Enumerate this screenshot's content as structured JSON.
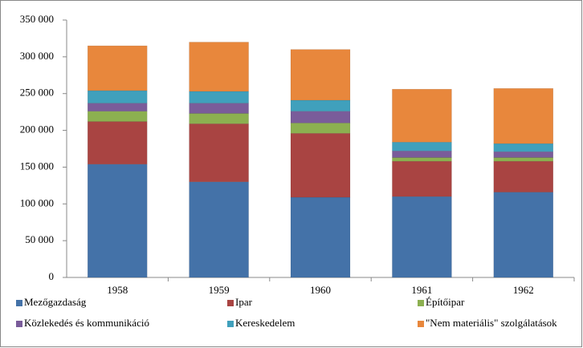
{
  "chart_data": {
    "type": "stacked-bar",
    "categories": [
      "1958",
      "1959",
      "1960",
      "1961",
      "1962"
    ],
    "series": [
      {
        "name": "Mezőgazdaság",
        "color": "#4472a8",
        "values": [
          154000,
          130000,
          109000,
          110000,
          116000
        ]
      },
      {
        "name": "Ipar",
        "color": "#a94442",
        "values": [
          58000,
          79000,
          87000,
          48000,
          42000
        ]
      },
      {
        "name": "Építőipar",
        "color": "#8cb050",
        "values": [
          14000,
          14000,
          14000,
          5000,
          5000
        ]
      },
      {
        "name": "Közlekedés és kommunikáció",
        "color": "#7a5c9a",
        "values": [
          11000,
          14000,
          16000,
          9000,
          8000
        ]
      },
      {
        "name": "Kereskedelem",
        "color": "#40a0bc",
        "values": [
          17000,
          16000,
          15000,
          12000,
          11000
        ]
      },
      {
        "name": "\"Nem materiális\" szolgálatások",
        "color": "#e8873c",
        "values": [
          61000,
          67000,
          69000,
          72000,
          75000
        ]
      }
    ],
    "ylim": [
      0,
      350000
    ],
    "yticks": [
      0,
      {
        "value": 50000,
        "label": "50 000"
      },
      {
        "value": 100000,
        "label": "100 000"
      },
      {
        "value": 150000,
        "label": "150 000"
      },
      {
        "value": 200000,
        "label": "200 000"
      },
      {
        "value": 250000,
        "label": "250 000"
      },
      {
        "value": 300000,
        "label": "300 000"
      },
      {
        "value": 350000,
        "label": "350 000"
      }
    ],
    "legend": "bottom"
  }
}
